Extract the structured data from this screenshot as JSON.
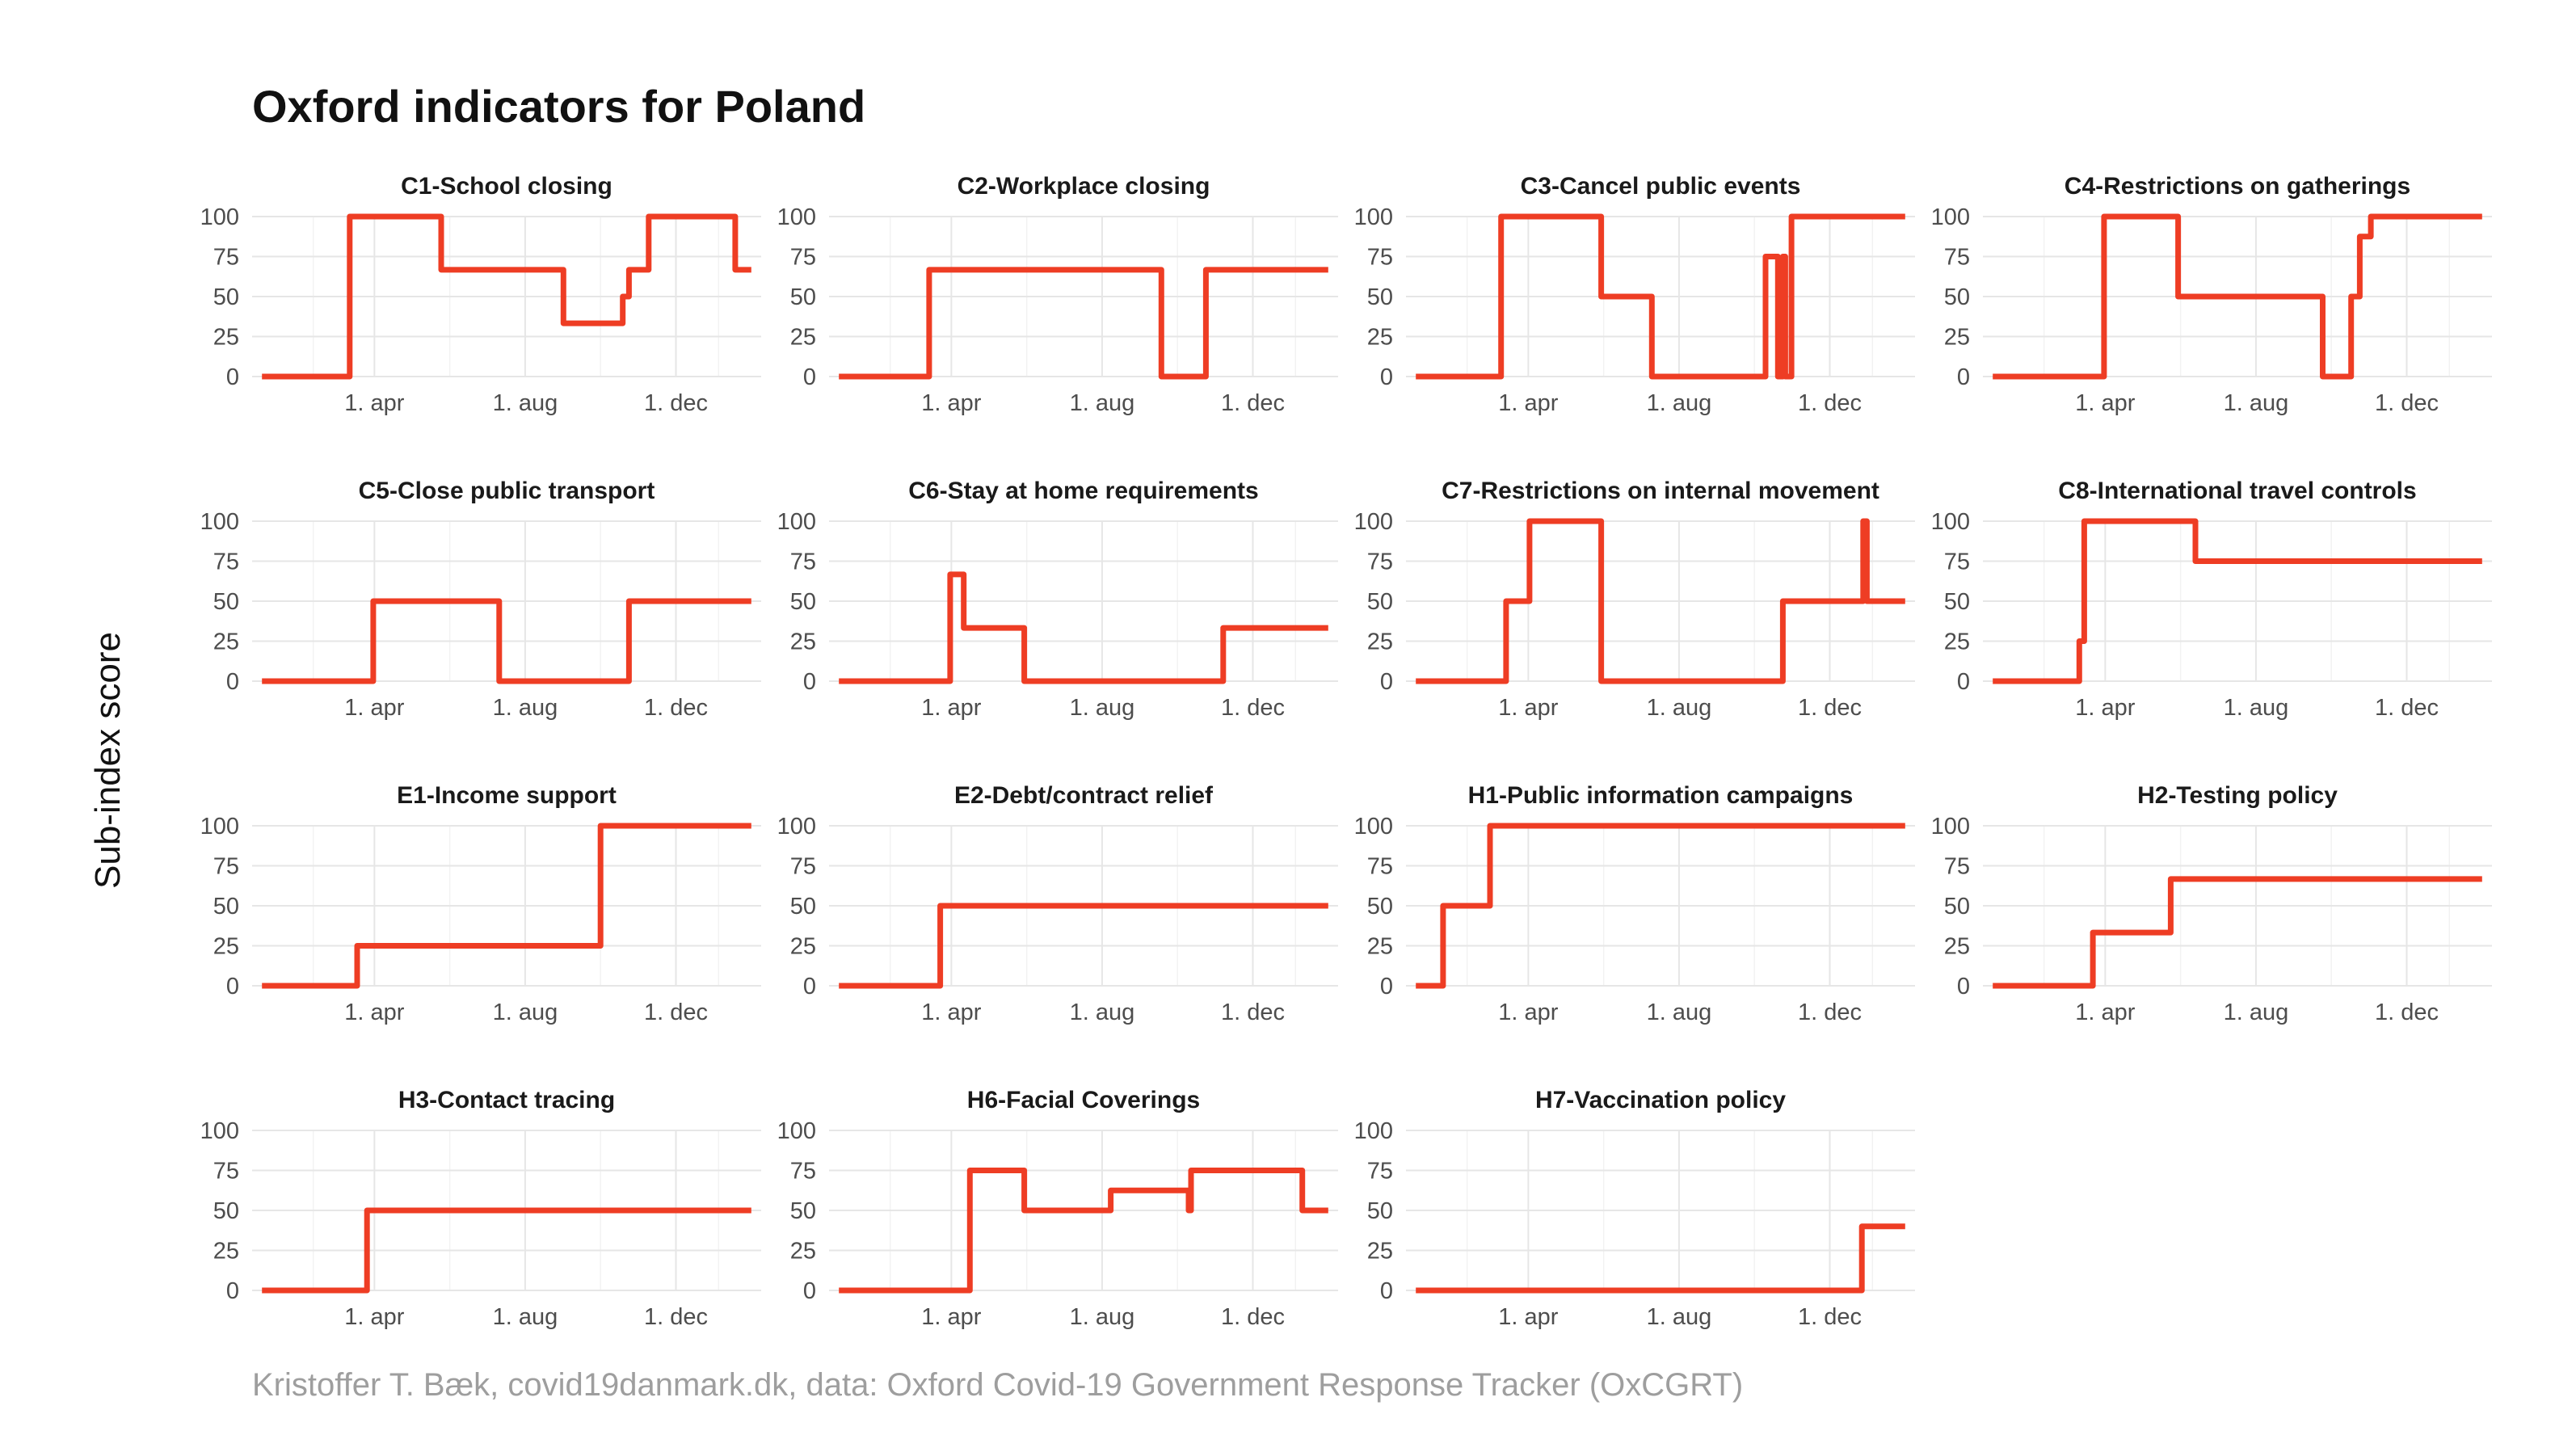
{
  "title": "Oxford indicators for Poland",
  "ylabel": "Sub-index score",
  "caption": "Kristoffer T. Bæk, covid19danmark.dk, data: Oxford Covid-19 Government Response Tracker (OxCGRT)",
  "colors": {
    "line": "#ee3d24",
    "grid": "#e6e6e6",
    "caption": "#9e9e9e"
  },
  "chart_data": {
    "type": "line",
    "facet_layout": "4x4 grid (15 panels)",
    "ylim": [
      0,
      100
    ],
    "yticks": [
      0,
      25,
      50,
      75,
      100
    ],
    "xlim": [
      "2020-01-01",
      "2021-01-31"
    ],
    "xticks": [
      {
        "date": "2020-04-01",
        "label": "1. apr"
      },
      {
        "date": "2020-08-01",
        "label": "1. aug"
      },
      {
        "date": "2020-12-01",
        "label": "1. dec"
      }
    ],
    "grid": true,
    "legend": "none",
    "panels": [
      {
        "title": "C1-School closing",
        "steps": [
          [
            "2020-01-01",
            0
          ],
          [
            "2020-03-12",
            100
          ],
          [
            "2020-05-25",
            66.7
          ],
          [
            "2020-09-01",
            33.3
          ],
          [
            "2020-10-19",
            50
          ],
          [
            "2020-10-24",
            66.7
          ],
          [
            "2020-11-09",
            100
          ],
          [
            "2021-01-18",
            66.7
          ]
        ],
        "end": "2021-01-31"
      },
      {
        "title": "C2-Workplace closing",
        "steps": [
          [
            "2020-01-01",
            0
          ],
          [
            "2020-03-14",
            66.7
          ],
          [
            "2020-09-18",
            0
          ],
          [
            "2020-10-24",
            66.7
          ]
        ],
        "end": "2021-01-31"
      },
      {
        "title": "C3-Cancel public events",
        "steps": [
          [
            "2020-01-01",
            0
          ],
          [
            "2020-03-10",
            100
          ],
          [
            "2020-05-30",
            50
          ],
          [
            "2020-07-10",
            0
          ],
          [
            "2020-10-10",
            75
          ],
          [
            "2020-10-20",
            0
          ],
          [
            "2020-10-24",
            75
          ],
          [
            "2020-10-26",
            0
          ],
          [
            "2020-10-31",
            100
          ]
        ],
        "end": "2021-01-31"
      },
      {
        "title": "C4-Restrictions on gatherings",
        "steps": [
          [
            "2020-01-01",
            0
          ],
          [
            "2020-03-31",
            100
          ],
          [
            "2020-05-30",
            50
          ],
          [
            "2020-09-24",
            0
          ],
          [
            "2020-10-17",
            50
          ],
          [
            "2020-10-24",
            87.5
          ],
          [
            "2020-11-02",
            100
          ]
        ],
        "end": "2021-01-31"
      },
      {
        "title": "C5-Close public transport",
        "steps": [
          [
            "2020-01-01",
            0
          ],
          [
            "2020-03-31",
            50
          ],
          [
            "2020-07-11",
            0
          ],
          [
            "2020-10-24",
            50
          ]
        ],
        "end": "2021-01-31"
      },
      {
        "title": "C6-Stay at home requirements",
        "steps": [
          [
            "2020-01-01",
            0
          ],
          [
            "2020-03-31",
            66.7
          ],
          [
            "2020-04-11",
            33.3
          ],
          [
            "2020-05-30",
            0
          ],
          [
            "2020-11-07",
            33.3
          ]
        ],
        "end": "2021-01-31"
      },
      {
        "title": "C7-Restrictions on internal movement",
        "steps": [
          [
            "2020-01-01",
            0
          ],
          [
            "2020-03-14",
            50
          ],
          [
            "2020-04-02",
            100
          ],
          [
            "2020-05-30",
            0
          ],
          [
            "2020-10-24",
            50
          ],
          [
            "2020-12-28",
            100
          ],
          [
            "2020-12-31",
            50
          ]
        ],
        "end": "2021-01-31"
      },
      {
        "title": "C8-International travel controls",
        "steps": [
          [
            "2020-01-01",
            0
          ],
          [
            "2020-03-11",
            25
          ],
          [
            "2020-03-15",
            100
          ],
          [
            "2020-06-13",
            75
          ]
        ],
        "end": "2021-01-31"
      },
      {
        "title": "E1-Income support",
        "steps": [
          [
            "2020-01-01",
            0
          ],
          [
            "2020-03-18",
            25
          ],
          [
            "2020-10-01",
            100
          ]
        ],
        "end": "2021-01-31"
      },
      {
        "title": "E2-Debt/contract relief",
        "steps": [
          [
            "2020-01-01",
            0
          ],
          [
            "2020-03-23",
            50
          ]
        ],
        "end": "2021-01-31"
      },
      {
        "title": "H1-Public information campaigns",
        "steps": [
          [
            "2020-01-01",
            0
          ],
          [
            "2020-01-23",
            50
          ],
          [
            "2020-03-01",
            100
          ]
        ],
        "end": "2021-01-31"
      },
      {
        "title": "H2-Testing policy",
        "steps": [
          [
            "2020-01-01",
            0
          ],
          [
            "2020-03-22",
            33.3
          ],
          [
            "2020-05-24",
            66.7
          ]
        ],
        "end": "2021-01-31"
      },
      {
        "title": "H3-Contact tracing",
        "steps": [
          [
            "2020-01-01",
            0
          ],
          [
            "2020-03-26",
            50
          ]
        ],
        "end": "2021-01-31"
      },
      {
        "title": "H6-Facial Coverings",
        "steps": [
          [
            "2020-01-01",
            0
          ],
          [
            "2020-04-16",
            75
          ],
          [
            "2020-05-30",
            50
          ],
          [
            "2020-08-08",
            62.5
          ],
          [
            "2020-10-10",
            50
          ],
          [
            "2020-10-12",
            75
          ],
          [
            "2021-01-10",
            50
          ]
        ],
        "end": "2021-01-31"
      },
      {
        "title": "H7-Vaccination policy",
        "steps": [
          [
            "2020-01-01",
            0
          ],
          [
            "2020-12-27",
            40
          ]
        ],
        "end": "2021-01-31"
      }
    ]
  }
}
